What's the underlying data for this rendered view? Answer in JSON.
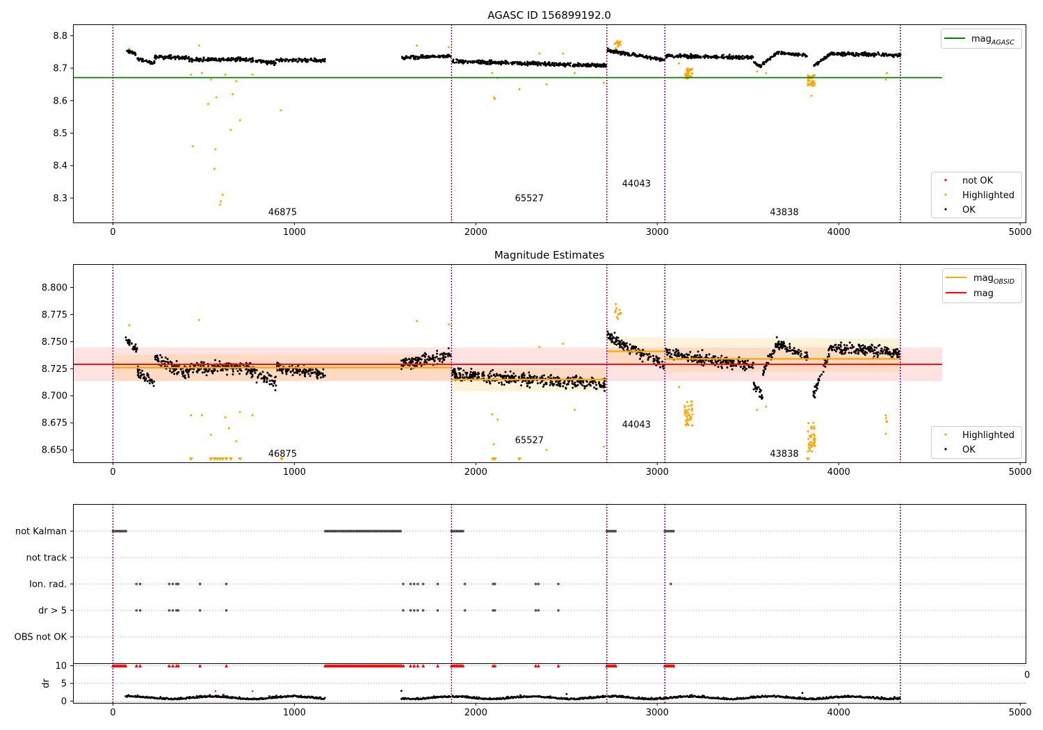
{
  "colors": {
    "ok": "#000000",
    "highlighted": "#ffa500",
    "not_ok": "#ff0000",
    "mag_agasc": "#008000",
    "mag_obsid": "#ffa500",
    "mag": "#ff0000",
    "obsid_line": "#800080"
  },
  "chart_data": [
    {
      "type": "scatter",
      "title": "AGASC ID 156899192.0",
      "xlim": [
        -220,
        5030
      ],
      "ylim": [
        8.225,
        8.835
      ],
      "x_ticks": [
        0,
        1000,
        2000,
        3000,
        4000,
        5000
      ],
      "y_ticks": [
        8.3,
        8.4,
        8.5,
        8.6,
        8.7,
        8.8
      ],
      "obsid_boundaries": [
        0,
        1866,
        2722,
        3042,
        4340
      ],
      "obsid_labels": [
        {
          "text": "46875",
          "x": 935,
          "y": 8.248
        },
        {
          "text": "65527",
          "x": 2295,
          "y": 8.29
        },
        {
          "text": "44043",
          "x": 2885,
          "y": 8.335
        },
        {
          "text": "43838",
          "x": 3700,
          "y": 8.248
        }
      ],
      "lines": [
        {
          "name": "mag_AGASC",
          "y": 8.671,
          "x": [
            -220,
            4570
          ]
        }
      ],
      "legends": [
        {
          "position": "upper right",
          "entries": [
            {
              "label": "mag",
              "sub": "AGASC",
              "kind": "line",
              "series": "mag_AGASC"
            }
          ]
        },
        {
          "position": "lower right",
          "entries": [
            {
              "label": "not OK",
              "kind": "dot",
              "series": "not_ok"
            },
            {
              "label": "Highlighted",
              "kind": "dot",
              "series": "highlighted"
            },
            {
              "label": "OK",
              "kind": "dot",
              "series": "ok"
            }
          ]
        }
      ],
      "ok_segments": [
        {
          "x0": 70,
          "x1": 135,
          "y0": 8.755,
          "y1": 8.742,
          "scatter": 0.007
        },
        {
          "x0": 135,
          "x1": 230,
          "y0": 8.728,
          "y1": 8.716,
          "scatter": 0.008
        },
        {
          "x0": 230,
          "x1": 420,
          "y0": 8.735,
          "y1": 8.732,
          "scatter": 0.009
        },
        {
          "x0": 420,
          "x1": 700,
          "y0": 8.726,
          "y1": 8.728,
          "scatter": 0.009
        },
        {
          "x0": 700,
          "x1": 900,
          "y0": 8.728,
          "y1": 8.716,
          "scatter": 0.009
        },
        {
          "x0": 900,
          "x1": 1170,
          "y0": 8.725,
          "y1": 8.724,
          "scatter": 0.008
        },
        {
          "x0": 1590,
          "x1": 1862,
          "y0": 8.731,
          "y1": 8.738,
          "scatter": 0.008
        },
        {
          "x0": 1870,
          "x1": 2718,
          "y0": 8.721,
          "y1": 8.708,
          "scatter": 0.009
        },
        {
          "x0": 2725,
          "x1": 3040,
          "y0": 8.755,
          "y1": 8.725,
          "scatter": 0.008
        },
        {
          "x0": 3045,
          "x1": 3530,
          "y0": 8.738,
          "y1": 8.733,
          "scatter": 0.008
        },
        {
          "x0": 3530,
          "x1": 3580,
          "y0": 8.718,
          "y1": 8.703,
          "scatter": 0.006
        },
        {
          "x0": 3580,
          "x1": 3660,
          "y0": 8.712,
          "y1": 8.748,
          "scatter": 0.007
        },
        {
          "x0": 3660,
          "x1": 3830,
          "y0": 8.748,
          "y1": 8.738,
          "scatter": 0.007
        },
        {
          "x0": 3860,
          "x1": 3950,
          "y0": 8.705,
          "y1": 8.742,
          "scatter": 0.007
        },
        {
          "x0": 3950,
          "x1": 4340,
          "y0": 8.745,
          "y1": 8.74,
          "scatter": 0.008
        }
      ],
      "highlighted_points": [
        [
          90,
          8.76
        ],
        [
          430,
          8.68
        ],
        [
          440,
          8.46
        ],
        [
          475,
          8.77
        ],
        [
          490,
          8.685
        ],
        [
          525,
          8.59
        ],
        [
          540,
          8.665
        ],
        [
          560,
          8.39
        ],
        [
          565,
          8.45
        ],
        [
          570,
          8.61
        ],
        [
          590,
          8.28
        ],
        [
          595,
          8.29
        ],
        [
          605,
          8.31
        ],
        [
          620,
          8.68
        ],
        [
          650,
          8.51
        ],
        [
          660,
          8.62
        ],
        [
          680,
          8.66
        ],
        [
          700,
          8.54
        ],
        [
          770,
          8.68
        ],
        [
          925,
          8.57
        ],
        [
          1675,
          8.77
        ],
        [
          1850,
          8.765
        ],
        [
          2090,
          8.685
        ],
        [
          2100,
          8.61
        ],
        [
          2105,
          8.605
        ],
        [
          2120,
          8.67
        ],
        [
          2240,
          8.635
        ],
        [
          2350,
          8.745
        ],
        [
          2390,
          8.65
        ],
        [
          2480,
          8.745
        ],
        [
          2545,
          8.685
        ],
        [
          2705,
          8.655
        ],
        [
          2780,
          8.783
        ],
        [
          2790,
          8.775
        ],
        [
          3120,
          8.715
        ],
        [
          3850,
          8.615
        ],
        [
          4260,
          8.665
        ],
        [
          4265,
          8.685
        ],
        [
          3550,
          8.69
        ],
        [
          3600,
          8.685
        ]
      ],
      "highlighted_clusters": [
        {
          "x0": 3150,
          "x1": 3195,
          "y0": 8.668,
          "y1": 8.7,
          "n": 42
        },
        {
          "x0": 3830,
          "x1": 3870,
          "y0": 8.645,
          "y1": 8.678,
          "n": 40
        },
        {
          "x0": 2765,
          "x1": 2800,
          "y0": 8.76,
          "y1": 8.785,
          "n": 12
        }
      ]
    },
    {
      "type": "scatter",
      "title": "Magnitude Estimates",
      "xlim": [
        -220,
        5030
      ],
      "ylim": [
        8.6385,
        8.8215
      ],
      "x_ticks": [
        0,
        1000,
        2000,
        3000,
        4000,
        5000
      ],
      "y_ticks": [
        8.65,
        8.675,
        8.7,
        8.725,
        8.75,
        8.775,
        8.8
      ],
      "obsid_boundaries": [
        0,
        1866,
        2722,
        3042,
        4340
      ],
      "obsid_labels": [
        {
          "text": "46875",
          "x": 935,
          "y": 8.6435
        },
        {
          "text": "65527",
          "x": 2295,
          "y": 8.656
        },
        {
          "text": "44043",
          "x": 2885,
          "y": 8.6705
        },
        {
          "text": "43838",
          "x": 3700,
          "y": 8.6435
        }
      ],
      "mag": {
        "name": "mag",
        "value": 8.729,
        "x": [
          -220,
          4570
        ],
        "band": [
          8.7135,
          8.7445
        ]
      },
      "mag_obsid": [
        {
          "x0": 0,
          "x1": 1866,
          "value": 8.726,
          "band": [
            8.714,
            8.738
          ]
        },
        {
          "x0": 1866,
          "x1": 2722,
          "value": 8.715,
          "band": [
            8.704,
            8.726
          ]
        },
        {
          "x0": 2722,
          "x1": 3042,
          "value": 8.741,
          "band": [
            8.729,
            8.754
          ]
        },
        {
          "x0": 3042,
          "x1": 4340,
          "value": 8.734,
          "band": [
            8.722,
            8.753
          ]
        }
      ],
      "legends": [
        {
          "position": "upper right",
          "entries": [
            {
              "label": "mag",
              "sub": "OBSID",
              "kind": "line",
              "series": "mag_OBSID"
            },
            {
              "label": "mag",
              "kind": "line",
              "series": "mag"
            }
          ]
        },
        {
          "position": "lower right",
          "entries": [
            {
              "label": "Highlighted",
              "kind": "dot",
              "series": "highlighted"
            },
            {
              "label": "OK",
              "kind": "dot",
              "series": "ok"
            }
          ]
        }
      ],
      "ok_segments": [
        {
          "x0": 70,
          "x1": 135,
          "y0": 8.752,
          "y1": 8.742,
          "scatter": 0.007
        },
        {
          "x0": 135,
          "x1": 230,
          "y0": 8.722,
          "y1": 8.712,
          "scatter": 0.008
        },
        {
          "x0": 230,
          "x1": 420,
          "y0": 8.735,
          "y1": 8.72,
          "scatter": 0.01
        },
        {
          "x0": 420,
          "x1": 700,
          "y0": 8.727,
          "y1": 8.726,
          "scatter": 0.01
        },
        {
          "x0": 700,
          "x1": 900,
          "y0": 8.728,
          "y1": 8.712,
          "scatter": 0.01
        },
        {
          "x0": 900,
          "x1": 1170,
          "y0": 8.726,
          "y1": 8.72,
          "scatter": 0.008
        },
        {
          "x0": 1590,
          "x1": 1862,
          "y0": 8.729,
          "y1": 8.738,
          "scatter": 0.009
        },
        {
          "x0": 1870,
          "x1": 2718,
          "y0": 8.72,
          "y1": 8.71,
          "scatter": 0.009
        },
        {
          "x0": 2725,
          "x1": 3040,
          "y0": 8.755,
          "y1": 8.728,
          "scatter": 0.008
        },
        {
          "x0": 3045,
          "x1": 3530,
          "y0": 8.74,
          "y1": 8.727,
          "scatter": 0.009
        },
        {
          "x0": 3530,
          "x1": 3580,
          "y0": 8.71,
          "y1": 8.7,
          "scatter": 0.006
        },
        {
          "x0": 3580,
          "x1": 3660,
          "y0": 8.72,
          "y1": 8.75,
          "scatter": 0.008
        },
        {
          "x0": 3660,
          "x1": 3830,
          "y0": 8.748,
          "y1": 8.736,
          "scatter": 0.008
        },
        {
          "x0": 3860,
          "x1": 3950,
          "y0": 8.7,
          "y1": 8.742,
          "scatter": 0.008
        },
        {
          "x0": 3950,
          "x1": 4340,
          "y0": 8.745,
          "y1": 8.74,
          "scatter": 0.008
        }
      ],
      "highlighted_points": [
        [
          90,
          8.765
        ],
        [
          430,
          8.682
        ],
        [
          475,
          8.77
        ],
        [
          490,
          8.682
        ],
        [
          540,
          8.664
        ],
        [
          620,
          8.68
        ],
        [
          640,
          8.67
        ],
        [
          680,
          8.658
        ],
        [
          700,
          8.685
        ],
        [
          770,
          8.682
        ],
        [
          1675,
          8.769
        ],
        [
          1850,
          8.766
        ],
        [
          2090,
          8.683
        ],
        [
          2100,
          8.655
        ],
        [
          2120,
          8.678
        ],
        [
          2350,
          8.745
        ],
        [
          2390,
          8.65
        ],
        [
          2480,
          8.748
        ],
        [
          2545,
          8.687
        ],
        [
          2705,
          8.653
        ],
        [
          3120,
          8.708
        ],
        [
          4260,
          8.665
        ],
        [
          3550,
          8.687
        ],
        [
          3600,
          8.69
        ]
      ],
      "highlighted_clusters": [
        {
          "x0": 3150,
          "x1": 3195,
          "y0": 8.672,
          "y1": 8.695,
          "n": 42
        },
        {
          "x0": 3830,
          "x1": 3870,
          "y0": 8.648,
          "y1": 8.676,
          "n": 40
        },
        {
          "x0": 2765,
          "x1": 2800,
          "y0": 8.77,
          "y1": 8.785,
          "n": 12
        },
        {
          "x0": 4255,
          "x1": 4270,
          "y0": 8.675,
          "y1": 8.684,
          "n": 5
        }
      ],
      "clipped_markers_x": [
        430,
        540,
        560,
        575,
        590,
        605,
        625,
        650,
        700,
        930,
        2095,
        2105,
        2240,
        3830
      ]
    },
    {
      "type": "scatter",
      "title": "",
      "xlim": [
        -220,
        5030
      ],
      "x_ticks": [
        0,
        1000,
        2000,
        3000,
        4000,
        5000
      ],
      "obsid_boundaries": [
        0,
        1866,
        2722,
        3042,
        4340
      ],
      "flag_rows": [
        "not Kalman",
        "not track",
        "Ion. rad.",
        "dr > 5",
        "OBS not OK"
      ],
      "flags": {
        "not Kalman": {
          "ranges": [
            [
              0,
              75
            ],
            [
              1170,
              1590
            ],
            [
              1866,
              1930
            ],
            [
              2722,
              2775
            ],
            [
              3042,
              3095
            ]
          ],
          "points": []
        },
        "not track": {
          "ranges": [],
          "points": []
        },
        "Ion. rad.": {
          "ranges": [],
          "points": [
            130,
            150,
            310,
            330,
            350,
            360,
            480,
            625,
            1600,
            1640,
            1660,
            1680,
            1710,
            1790,
            1940,
            2095,
            2105,
            2330,
            2345,
            2455,
            3075
          ]
        },
        "dr > 5": {
          "ranges": [],
          "points": [
            130,
            150,
            310,
            330,
            350,
            360,
            480,
            625,
            1600,
            1640,
            1660,
            1680,
            1710,
            1790,
            1940,
            2095,
            2105,
            2330,
            2345,
            2455
          ]
        },
        "OBS not OK": {
          "ranges": [],
          "points": []
        }
      },
      "dr": {
        "ylabel": "dr",
        "y_ticks": [
          0,
          5,
          10
        ],
        "ylim": [
          -0.5,
          10.5
        ],
        "clipped_ranges": [
          [
            0,
            75
          ],
          [
            1170,
            1590
          ],
          [
            1866,
            1930
          ],
          [
            2722,
            2775
          ],
          [
            3042,
            3095
          ]
        ],
        "clipped_points": [
          130,
          150,
          310,
          330,
          350,
          360,
          480,
          625,
          1600,
          1640,
          1660,
          1680,
          1710,
          1790,
          2095,
          2105,
          2330,
          2345,
          2455
        ],
        "red_points": [
          [
            565,
            2.8
          ],
          [
            610,
            1.9
          ],
          [
            770,
            2.8
          ]
        ],
        "ok_segments": [
          [
            70,
            1170
          ],
          [
            1590,
            1862
          ],
          [
            1870,
            2718
          ],
          [
            2725,
            3040
          ],
          [
            3045,
            4340
          ]
        ],
        "outliers": [
          [
            1590,
            2.9
          ],
          [
            3800,
            2.3
          ],
          [
            2500,
            2.0
          ]
        ]
      },
      "overflow_tick": "0"
    }
  ]
}
